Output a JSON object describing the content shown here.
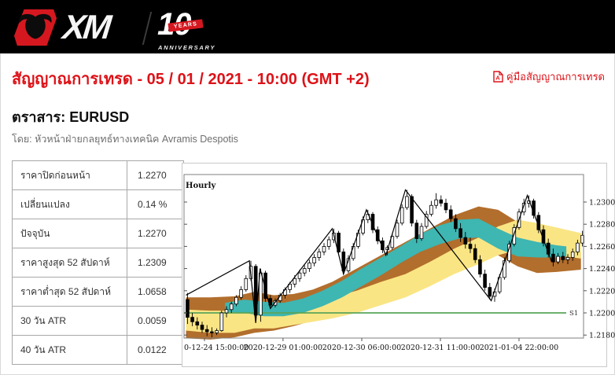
{
  "header": {
    "brand": "XM",
    "anniversary_number": "10",
    "anniversary_ribbon": "YEARS",
    "anniversary_word": "ANNIVERSARY"
  },
  "page": {
    "title": "สัญญาณการเทรด - 05 / 01 / 2021 - 10:00 (GMT +2)",
    "manual_link": "คู่มือสัญญาณการเทรด",
    "instrument_label": "ตราสาร: EURUSD",
    "byline": "โดย: หัวหน้าฝ่ายกลยุทธ์ทางเทคนิค Avramis Despotis"
  },
  "stats_table": {
    "rows": [
      {
        "label": "ราคาปิดก่อนหน้า",
        "value": "1.2270"
      },
      {
        "label": "เปลี่ยนแปลง",
        "value": "0.14 %"
      },
      {
        "label": "ปัจจุบัน",
        "value": "1.2270"
      },
      {
        "label": "ราคาสูงสุด 52 สัปดาห์",
        "value": "1.2309"
      },
      {
        "label": "ราคาต่ำสุด 52 สัปดาห์",
        "value": "1.0658"
      },
      {
        "label": "30 วัน ATR",
        "value": "0.0059"
      },
      {
        "label": "40 วัน ATR",
        "value": "0.0122"
      }
    ]
  },
  "colors": {
    "accent_red": "#dd1218",
    "header_black": "#000000",
    "band_teal": "#3eb6b2",
    "band_brown": "#b26e2c",
    "band_yellow": "#fae584",
    "support_green": "#5aa55a"
  },
  "chart_data": {
    "type": "candlestick",
    "timeframe_label": "Hourly",
    "ylim": [
      1.2176,
      1.2325
    ],
    "y_ticks": [
      1.23,
      1.228,
      1.226,
      1.224,
      1.222,
      1.22,
      1.218
    ],
    "x_ticks": [
      {
        "i": 3.79,
        "label": "0-12-24 15:00:00"
      },
      {
        "i": 19.9,
        "label": "2020-12-29 01:00:00"
      },
      {
        "i": 36.05,
        "label": "2020-12-30 06:00:00"
      },
      {
        "i": 52.18,
        "label": "2020-12-31 11:00:00"
      },
      {
        "i": 68.3,
        "label": "2021-01-04 22:00:00"
      }
    ],
    "support": {
      "label": "S1",
      "price": 1.22,
      "color": "#5aa55a"
    },
    "bands": {
      "brown": {
        "color": "#b26e2c",
        "points": [
          [
            0,
            1.2214,
            1.2177
          ],
          [
            5,
            1.2214,
            1.2176
          ],
          [
            10,
            1.2215,
            1.2178
          ],
          [
            14,
            1.2219,
            1.2182
          ],
          [
            18,
            1.2216,
            1.2184
          ],
          [
            22,
            1.2217,
            1.2188
          ],
          [
            26,
            1.2221,
            1.2193
          ],
          [
            30,
            1.2228,
            1.2198
          ],
          [
            35,
            1.224,
            1.2208
          ],
          [
            40,
            1.2252,
            1.222
          ],
          [
            45,
            1.2264,
            1.2232
          ],
          [
            50,
            1.2276,
            1.2245
          ],
          [
            55,
            1.2288,
            1.2256
          ],
          [
            60,
            1.2296,
            1.2263
          ],
          [
            64,
            1.2293,
            1.2252
          ],
          [
            68,
            1.2282,
            1.2242
          ],
          [
            72,
            1.227,
            1.2236
          ],
          [
            76,
            1.2261,
            1.2237
          ],
          [
            81,
            1.2255,
            1.2239
          ]
        ]
      },
      "yellow": {
        "color": "#fae584",
        "points": [
          [
            0,
            1.2203,
            1.2184
          ],
          [
            5,
            1.2202,
            1.2182
          ],
          [
            10,
            1.2202,
            1.2182
          ],
          [
            14,
            1.2208,
            1.2186
          ],
          [
            18,
            1.2206,
            1.2186
          ],
          [
            22,
            1.2206,
            1.2189
          ],
          [
            26,
            1.2209,
            1.2192
          ],
          [
            30,
            1.2214,
            1.2195
          ],
          [
            35,
            1.222,
            1.22
          ],
          [
            40,
            1.2228,
            1.2207
          ],
          [
            45,
            1.2235,
            1.2214
          ],
          [
            50,
            1.2246,
            1.2224
          ],
          [
            55,
            1.2258,
            1.2235
          ],
          [
            60,
            1.2268,
            1.2244
          ],
          [
            64,
            1.2278,
            1.2252
          ],
          [
            68,
            1.2284,
            1.2257
          ],
          [
            72,
            1.2281,
            1.2255
          ],
          [
            76,
            1.2277,
            1.2252
          ],
          [
            81,
            1.2272,
            1.2249
          ]
        ]
      },
      "teal": {
        "color": "#3eb6b2",
        "points": [
          [
            8,
            1.2209,
            1.2201
          ],
          [
            12,
            1.2212,
            1.22
          ],
          [
            16,
            1.221,
            1.2197
          ],
          [
            20,
            1.2209,
            1.2197
          ],
          [
            24,
            1.2213,
            1.22
          ],
          [
            28,
            1.222,
            1.2206
          ],
          [
            32,
            1.2229,
            1.2214
          ],
          [
            36,
            1.224,
            1.2224
          ],
          [
            40,
            1.225,
            1.2234
          ],
          [
            44,
            1.226,
            1.2245
          ],
          [
            48,
            1.2271,
            1.2255
          ],
          [
            52,
            1.2279,
            1.2262
          ],
          [
            56,
            1.2284,
            1.2267
          ],
          [
            60,
            1.2285,
            1.2268
          ],
          [
            64,
            1.2276,
            1.2258
          ],
          [
            68,
            1.2268,
            1.2251
          ],
          [
            72,
            1.2264,
            1.225
          ],
          [
            76,
            1.2261,
            1.225
          ],
          [
            78,
            1.226,
            1.2251
          ]
        ]
      }
    },
    "zigzag": [
      [
        0,
        1.2216
      ],
      [
        13,
        1.2247
      ],
      [
        14.3,
        1.2191
      ],
      [
        15.2,
        1.224
      ],
      [
        17.3,
        1.2204
      ],
      [
        30,
        1.2276
      ],
      [
        32.3,
        1.2235
      ],
      [
        37,
        1.2293
      ],
      [
        41,
        1.2252
      ],
      [
        45,
        1.2311
      ],
      [
        62.6,
        1.2211
      ],
      [
        70,
        1.2306
      ],
      [
        75,
        1.2246
      ]
    ],
    "candles": [
      [
        1.2212,
        1.2218,
        1.219,
        1.2196
      ],
      [
        1.2196,
        1.22,
        1.2188,
        1.2192
      ],
      [
        1.2192,
        1.2196,
        1.2185,
        1.2189
      ],
      [
        1.2189,
        1.2192,
        1.2182,
        1.2185
      ],
      [
        1.2185,
        1.2189,
        1.2179,
        1.2183
      ],
      [
        1.2183,
        1.2187,
        1.2178,
        1.2182
      ],
      [
        1.2182,
        1.2186,
        1.218,
        1.2184
      ],
      [
        1.2184,
        1.2202,
        1.2183,
        1.22
      ],
      [
        1.22,
        1.2206,
        1.2196,
        1.2203
      ],
      [
        1.2203,
        1.221,
        1.22,
        1.2208
      ],
      [
        1.2208,
        1.2216,
        1.2206,
        1.2214
      ],
      [
        1.2214,
        1.2224,
        1.2212,
        1.2221
      ],
      [
        1.2221,
        1.2234,
        1.2219,
        1.2231
      ],
      [
        1.2231,
        1.2247,
        1.2229,
        1.2242
      ],
      [
        1.2242,
        1.2244,
        1.2191,
        1.2198
      ],
      [
        1.2198,
        1.224,
        1.2192,
        1.2236
      ],
      [
        1.2236,
        1.2238,
        1.221,
        1.2213
      ],
      [
        1.2213,
        1.2216,
        1.2204,
        1.2207
      ],
      [
        1.2207,
        1.2213,
        1.2205,
        1.2211
      ],
      [
        1.2211,
        1.2218,
        1.2209,
        1.2216
      ],
      [
        1.2216,
        1.2223,
        1.2213,
        1.2221
      ],
      [
        1.2221,
        1.2228,
        1.2218,
        1.2226
      ],
      [
        1.2226,
        1.2234,
        1.2223,
        1.2231
      ],
      [
        1.2231,
        1.2239,
        1.2228,
        1.2236
      ],
      [
        1.2236,
        1.2243,
        1.2233,
        1.224
      ],
      [
        1.224,
        1.2248,
        1.2237,
        1.2245
      ],
      [
        1.2245,
        1.2253,
        1.2242,
        1.225
      ],
      [
        1.225,
        1.2258,
        1.2247,
        1.2255
      ],
      [
        1.2255,
        1.2263,
        1.2252,
        1.226
      ],
      [
        1.226,
        1.2269,
        1.2257,
        1.2266
      ],
      [
        1.2266,
        1.2276,
        1.2263,
        1.2272
      ],
      [
        1.2272,
        1.2274,
        1.2252,
        1.2255
      ],
      [
        1.2255,
        1.2258,
        1.2235,
        1.2238
      ],
      [
        1.2238,
        1.2252,
        1.2236,
        1.2249
      ],
      [
        1.2249,
        1.2263,
        1.2247,
        1.226
      ],
      [
        1.226,
        1.2275,
        1.2258,
        1.2272
      ],
      [
        1.2272,
        1.2287,
        1.227,
        1.2284
      ],
      [
        1.2284,
        1.2293,
        1.2281,
        1.2289
      ],
      [
        1.2289,
        1.2291,
        1.2272,
        1.2275
      ],
      [
        1.2275,
        1.2278,
        1.2262,
        1.2265
      ],
      [
        1.2265,
        1.2268,
        1.2254,
        1.2257
      ],
      [
        1.2257,
        1.2261,
        1.2252,
        1.2259
      ],
      [
        1.2259,
        1.2272,
        1.2257,
        1.2269
      ],
      [
        1.2269,
        1.2284,
        1.2267,
        1.2281
      ],
      [
        1.2281,
        1.2298,
        1.2279,
        1.2295
      ],
      [
        1.2295,
        1.2311,
        1.2293,
        1.2305
      ],
      [
        1.2305,
        1.2307,
        1.2278,
        1.2281
      ],
      [
        1.2281,
        1.2284,
        1.2263,
        1.2267
      ],
      [
        1.2267,
        1.2281,
        1.2265,
        1.2278
      ],
      [
        1.2278,
        1.2292,
        1.2276,
        1.2289
      ],
      [
        1.2289,
        1.2301,
        1.2287,
        1.2297
      ],
      [
        1.2297,
        1.2308,
        1.2294,
        1.2302
      ],
      [
        1.2302,
        1.2306,
        1.2296,
        1.2299
      ],
      [
        1.2299,
        1.2303,
        1.229,
        1.2293
      ],
      [
        1.2293,
        1.2297,
        1.2282,
        1.2285
      ],
      [
        1.2285,
        1.2289,
        1.2273,
        1.2276
      ],
      [
        1.2276,
        1.2281,
        1.2264,
        1.2268
      ],
      [
        1.2268,
        1.2273,
        1.2258,
        1.2262
      ],
      [
        1.2262,
        1.2268,
        1.2254,
        1.2258
      ],
      [
        1.2258,
        1.2262,
        1.2245,
        1.2248
      ],
      [
        1.2248,
        1.2252,
        1.2232,
        1.2235
      ],
      [
        1.2235,
        1.2239,
        1.222,
        1.2223
      ],
      [
        1.2223,
        1.2227,
        1.2212,
        1.2215
      ],
      [
        1.2215,
        1.2222,
        1.221,
        1.2219
      ],
      [
        1.2219,
        1.2235,
        1.2217,
        1.2232
      ],
      [
        1.2232,
        1.225,
        1.223,
        1.2247
      ],
      [
        1.2247,
        1.2265,
        1.2245,
        1.2262
      ],
      [
        1.2262,
        1.228,
        1.226,
        1.2277
      ],
      [
        1.2277,
        1.2294,
        1.2275,
        1.2291
      ],
      [
        1.2291,
        1.2303,
        1.2288,
        1.2299
      ],
      [
        1.2299,
        1.2306,
        1.2295,
        1.2301
      ],
      [
        1.2301,
        1.2303,
        1.2285,
        1.2288
      ],
      [
        1.2288,
        1.2291,
        1.2272,
        1.2275
      ],
      [
        1.2275,
        1.2279,
        1.226,
        1.2263
      ],
      [
        1.2263,
        1.2267,
        1.225,
        1.2253
      ],
      [
        1.2253,
        1.2258,
        1.2242,
        1.2246
      ],
      [
        1.2246,
        1.2254,
        1.2244,
        1.2251
      ],
      [
        1.2251,
        1.2255,
        1.2245,
        1.2248
      ],
      [
        1.2248,
        1.2253,
        1.2244,
        1.225
      ],
      [
        1.225,
        1.2258,
        1.2247,
        1.2255
      ],
      [
        1.2255,
        1.2266,
        1.2252,
        1.2263
      ],
      [
        1.2263,
        1.2274,
        1.226,
        1.227
      ]
    ]
  }
}
